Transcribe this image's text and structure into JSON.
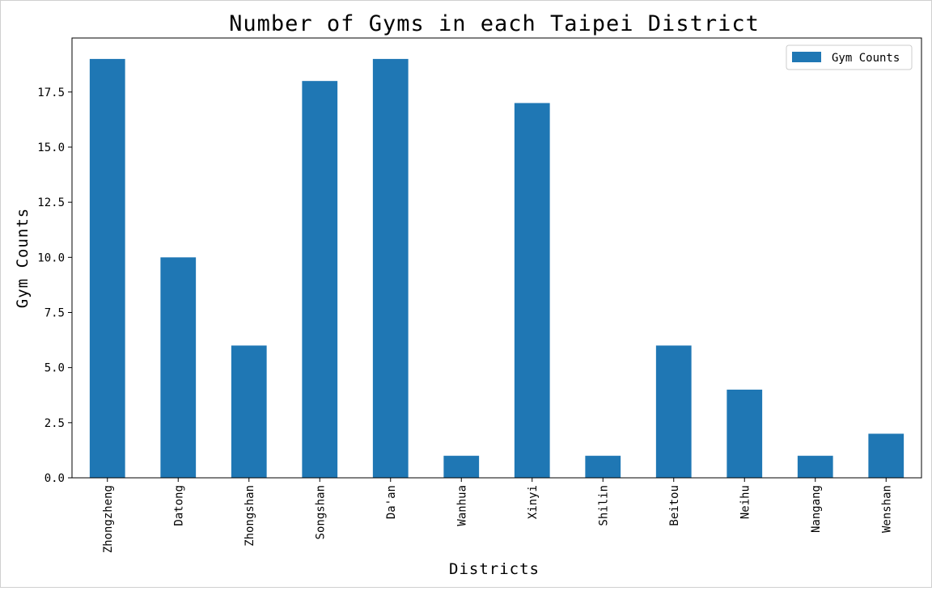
{
  "chart_data": {
    "type": "bar",
    "title": "Number of Gyms in each Taipei District",
    "xlabel": "Districts",
    "ylabel": "Gym Counts",
    "categories": [
      "Zhongzheng",
      "Datong",
      "Zhongshan",
      "Songshan",
      "Da'an",
      "Wanhua",
      "Xinyi",
      "Shilin",
      "Beitou",
      "Neihu",
      "Nangang",
      "Wenshan"
    ],
    "series": [
      {
        "name": "Gym Counts",
        "values": [
          19,
          10,
          6,
          18,
          19,
          1,
          17,
          1,
          6,
          4,
          1,
          2
        ],
        "color": "#1f77b4"
      }
    ],
    "ylim": [
      0,
      19.95
    ],
    "yticks": [
      0,
      2.5,
      5,
      7.5,
      10,
      12.5,
      15,
      17.5
    ],
    "ytick_labels": [
      "0.0",
      "2.5",
      "5.0",
      "7.5",
      "10.0",
      "12.5",
      "15.0",
      "17.5"
    ],
    "grid": false,
    "legend": {
      "position": "upper right"
    }
  }
}
